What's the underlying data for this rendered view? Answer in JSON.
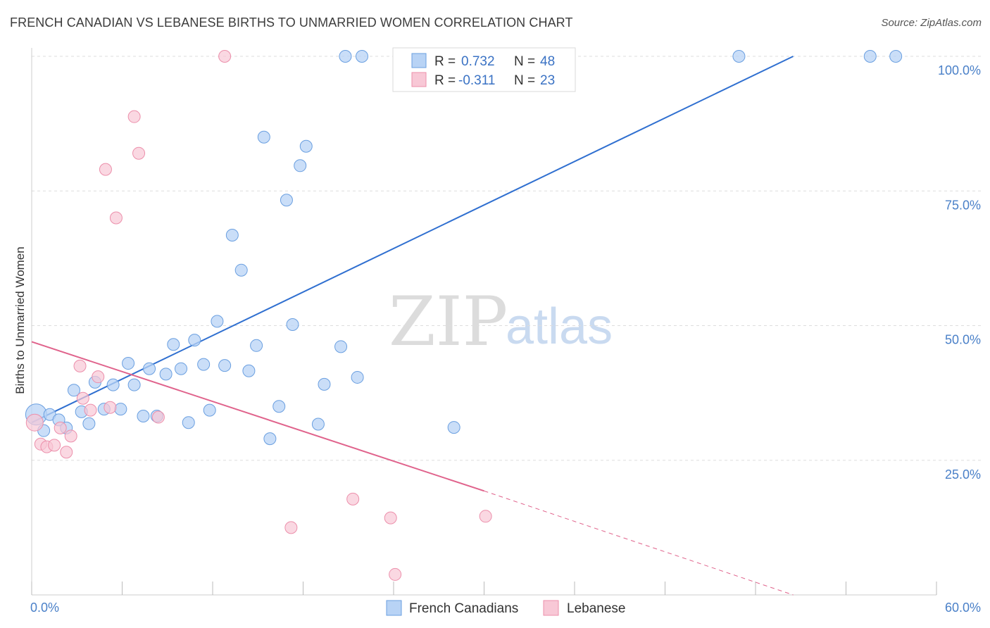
{
  "header": {
    "title": "FRENCH CANADIAN VS LEBANESE BIRTHS TO UNMARRIED WOMEN CORRELATION CHART",
    "source": "Source: ZipAtlas.com"
  },
  "watermark": {
    "zip": "ZIP",
    "atlas": "atlas"
  },
  "legend": {
    "r_label": "R =",
    "n_label": "N =",
    "entries": [
      {
        "r": "0.732",
        "n": "48"
      },
      {
        "r": "-0.311",
        "n": "23"
      }
    ]
  },
  "chart_data": {
    "type": "scatter",
    "title": "FRENCH CANADIAN VS LEBANESE BIRTHS TO UNMARRIED WOMEN CORRELATION CHART",
    "xlabel": "",
    "ylabel": "Births to Unmarried Women",
    "xlim": [
      0,
      60
    ],
    "ylim": [
      0,
      100
    ],
    "x_tick_labels": [
      "0.0%",
      "60.0%"
    ],
    "y_tick_labels": [
      "25.0%",
      "50.0%",
      "75.0%",
      "100.0%"
    ],
    "y_ticks": [
      25,
      50,
      75,
      100
    ],
    "grid": true,
    "legend_position": "top-center",
    "colors": {
      "french_fill": "#b8d3f5",
      "french_stroke": "#6a9fe0",
      "french_line": "#2f6fd0",
      "lebanese_fill": "#f8c8d6",
      "lebanese_stroke": "#ec8fab",
      "lebanese_line": "#e0638c",
      "grid": "#dddddd",
      "axis_tick": "#4a80c8"
    },
    "series": [
      {
        "name": "French Canadians",
        "r": 0.732,
        "n": 48,
        "trend": {
          "x": [
            0,
            50.5
          ],
          "y": [
            32.0,
            100.0
          ]
        },
        "points": [
          [
            0.3,
            33.5
          ],
          [
            0.8,
            30.5
          ],
          [
            1.2,
            33.5
          ],
          [
            1.8,
            32.5
          ],
          [
            2.3,
            31.0
          ],
          [
            2.8,
            38.0
          ],
          [
            3.3,
            34.0
          ],
          [
            3.8,
            31.8
          ],
          [
            4.2,
            39.5
          ],
          [
            4.8,
            34.5
          ],
          [
            5.4,
            39.0
          ],
          [
            5.9,
            34.5
          ],
          [
            6.4,
            43.0
          ],
          [
            6.8,
            39.0
          ],
          [
            7.4,
            33.2
          ],
          [
            7.8,
            42.0
          ],
          [
            8.3,
            33.2
          ],
          [
            8.9,
            41.0
          ],
          [
            9.4,
            46.5
          ],
          [
            9.9,
            42.0
          ],
          [
            10.4,
            32.0
          ],
          [
            10.8,
            47.3
          ],
          [
            11.4,
            42.8
          ],
          [
            11.8,
            34.3
          ],
          [
            12.3,
            50.8
          ],
          [
            12.8,
            42.6
          ],
          [
            13.3,
            66.8
          ],
          [
            13.9,
            60.3
          ],
          [
            14.4,
            41.6
          ],
          [
            14.9,
            46.3
          ],
          [
            15.4,
            85.0
          ],
          [
            15.8,
            29.0
          ],
          [
            16.4,
            35.0
          ],
          [
            16.9,
            73.3
          ],
          [
            17.3,
            50.2
          ],
          [
            17.8,
            79.7
          ],
          [
            18.2,
            83.3
          ],
          [
            19.0,
            31.7
          ],
          [
            19.4,
            39.1
          ],
          [
            20.5,
            46.1
          ],
          [
            20.8,
            100.0
          ],
          [
            21.6,
            40.4
          ],
          [
            21.9,
            100.0
          ],
          [
            28.0,
            31.1
          ],
          [
            32.5,
            100.0
          ],
          [
            46.9,
            100.0
          ],
          [
            55.6,
            100.0
          ],
          [
            57.3,
            100.0
          ]
        ]
      },
      {
        "name": "Lebanese",
        "r": -0.311,
        "n": 23,
        "trend": {
          "x": [
            0,
            30.0
          ],
          "y": [
            47.0,
            19.3
          ]
        },
        "trend_dashed": {
          "x": [
            30.0,
            50.5
          ],
          "y": [
            19.3,
            0.0
          ]
        },
        "points": [
          [
            0.2,
            32.0
          ],
          [
            0.6,
            28.0
          ],
          [
            1.0,
            27.5
          ],
          [
            1.5,
            27.8
          ],
          [
            1.9,
            31.0
          ],
          [
            2.3,
            26.5
          ],
          [
            2.6,
            29.5
          ],
          [
            3.2,
            42.5
          ],
          [
            3.4,
            36.5
          ],
          [
            3.9,
            34.3
          ],
          [
            4.4,
            40.5
          ],
          [
            4.9,
            79.0
          ],
          [
            5.2,
            34.8
          ],
          [
            5.6,
            70.0
          ],
          [
            6.8,
            88.8
          ],
          [
            7.1,
            82.0
          ],
          [
            8.4,
            33.0
          ],
          [
            12.8,
            100.0
          ],
          [
            17.2,
            12.5
          ],
          [
            21.3,
            17.8
          ],
          [
            23.8,
            14.3
          ],
          [
            24.1,
            3.8
          ],
          [
            30.1,
            14.6
          ]
        ]
      }
    ]
  }
}
